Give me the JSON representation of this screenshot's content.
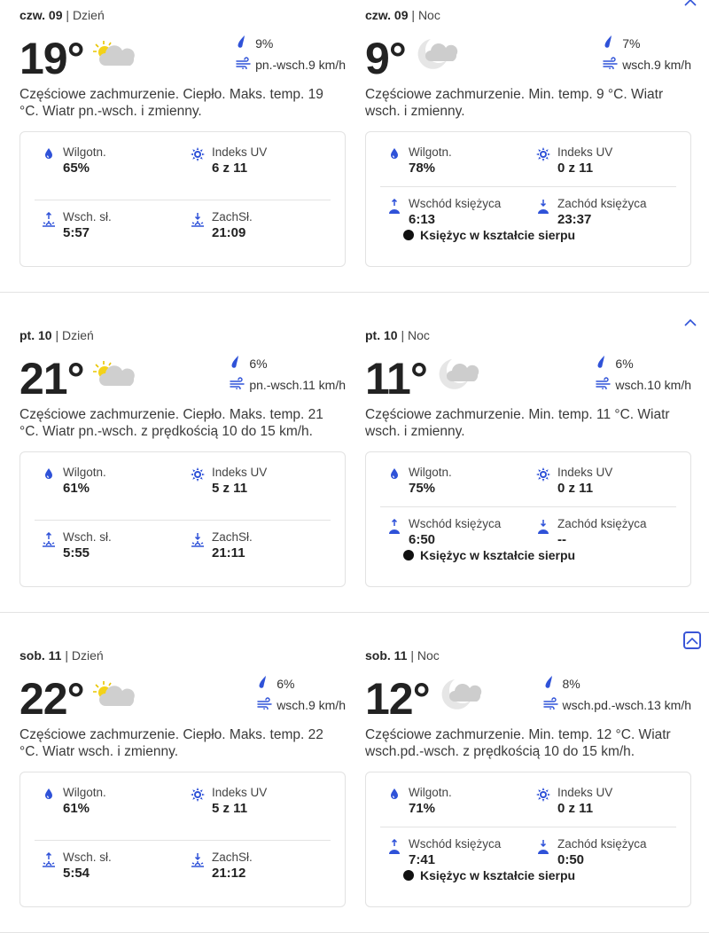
{
  "colors": {
    "accent": "#2f52d8",
    "text": "#262626"
  },
  "days": [
    {
      "day": {
        "date": "czw. 09",
        "period": "Dzień",
        "temp": "19°",
        "precip": "9%",
        "wind": "pn.-wsch.9 km/h",
        "desc": "Częściowe zachmurzenie. Ciepło. Maks. temp. 19 °C. Wiatr pn.-wsch. i zmienny.",
        "humidity_label": "Wilgotn.",
        "humidity": "65%",
        "uv_label": "Indeks UV",
        "uv": "6 z 11",
        "rise_label": "Wsch. sł.",
        "rise": "5:57",
        "set_label": "ZachSł.",
        "set": "21:09",
        "icon": "partly-sunny-icon"
      },
      "night": {
        "date": "czw. 09",
        "period": "Noc",
        "temp": "9°",
        "precip": "7%",
        "wind": "wsch.9 km/h",
        "desc": "Częściowe zachmurzenie. Min. temp. 9 °C. Wiatr wsch. i zmienny.",
        "humidity_label": "Wilgotn.",
        "humidity": "78%",
        "uv_label": "Indeks UV",
        "uv": "0 z 11",
        "rise_label": "Wschód księżyca",
        "rise": "6:13",
        "set_label": "Zachód księżyca",
        "set": "23:37",
        "phase": "Księżyc w kształcie sierpu",
        "icon": "partly-cloudy-night-icon"
      }
    },
    {
      "day": {
        "date": "pt. 10",
        "period": "Dzień",
        "temp": "21°",
        "precip": "6%",
        "wind": "pn.-wsch.11 km/h",
        "desc": "Częściowe zachmurzenie. Ciepło. Maks. temp. 21 °C. Wiatr pn.-wsch. z prędkością 10 do 15 km/h.",
        "humidity_label": "Wilgotn.",
        "humidity": "61%",
        "uv_label": "Indeks UV",
        "uv": "5 z 11",
        "rise_label": "Wsch. sł.",
        "rise": "5:55",
        "set_label": "ZachSł.",
        "set": "21:11",
        "icon": "partly-sunny-icon"
      },
      "night": {
        "date": "pt. 10",
        "period": "Noc",
        "temp": "11°",
        "precip": "6%",
        "wind": "wsch.10 km/h",
        "desc": "Częściowe zachmurzenie. Min. temp. 11 °C. Wiatr wsch. i zmienny.",
        "humidity_label": "Wilgotn.",
        "humidity": "75%",
        "uv_label": "Indeks UV",
        "uv": "0 z 11",
        "rise_label": "Wschód księżyca",
        "rise": "6:50",
        "set_label": "Zachód księżyca",
        "set": "--",
        "phase": "Księżyc w kształcie sierpu",
        "icon": "partly-cloudy-night-icon"
      }
    },
    {
      "day": {
        "date": "sob. 11",
        "period": "Dzień",
        "temp": "22°",
        "precip": "6%",
        "wind": "wsch.9 km/h",
        "desc": "Częściowe zachmurzenie. Ciepło. Maks. temp. 22 °C. Wiatr wsch. i zmienny.",
        "humidity_label": "Wilgotn.",
        "humidity": "61%",
        "uv_label": "Indeks UV",
        "uv": "5 z 11",
        "rise_label": "Wsch. sł.",
        "rise": "5:54",
        "set_label": "ZachSł.",
        "set": "21:12",
        "icon": "partly-sunny-icon"
      },
      "night": {
        "date": "sob. 11",
        "period": "Noc",
        "temp": "12°",
        "precip": "8%",
        "wind": "wsch.pd.-wsch.13 km/h",
        "desc": "Częściowe zachmurzenie. Min. temp. 12 °C. Wiatr wsch.pd.-wsch. z prędkością 10 do 15 km/h.",
        "humidity_label": "Wilgotn.",
        "humidity": "71%",
        "uv_label": "Indeks UV",
        "uv": "0 z 11",
        "rise_label": "Wschód księżyca",
        "rise": "7:41",
        "set_label": "Zachód księżyca",
        "set": "0:50",
        "phase": "Księżyc w kształcie sierpu",
        "icon": "partly-cloudy-night-icon"
      }
    }
  ]
}
